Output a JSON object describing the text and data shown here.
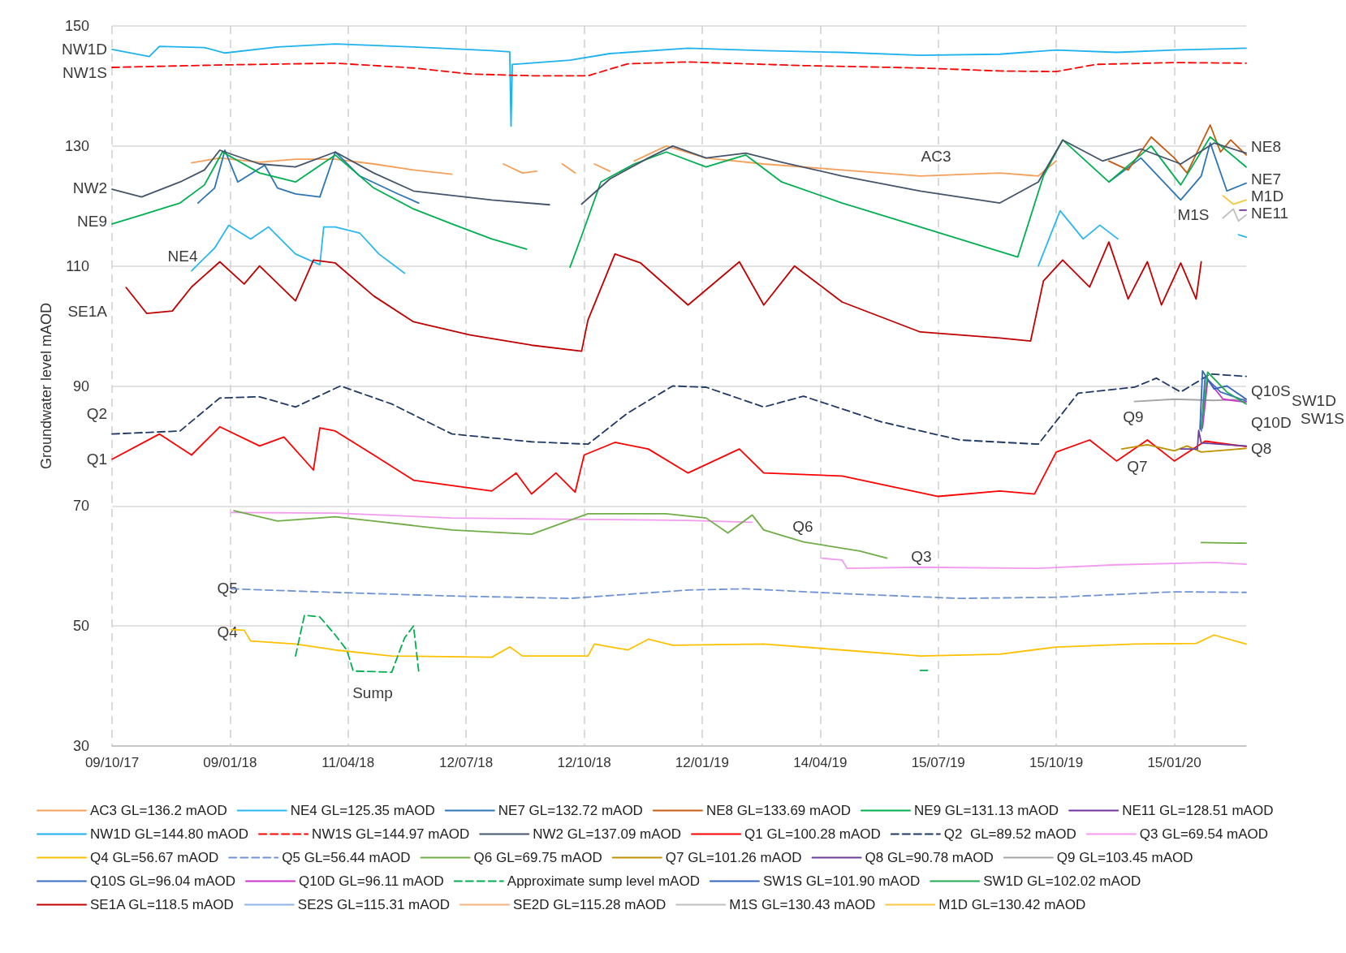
{
  "chart_data": {
    "type": "line",
    "ylabel": "Groundwater level mAOD",
    "xlim": [
      "2017-10-09",
      "2020-03-11"
    ],
    "ylim": [
      30,
      150
    ],
    "yticks": [
      30,
      50,
      70,
      90,
      110,
      130,
      150
    ],
    "xticks": [
      {
        "value": "2017-10-09",
        "label": "09/10/17"
      },
      {
        "value": "2018-01-09",
        "label": "09/01/18"
      },
      {
        "value": "2018-04-11",
        "label": "11/04/18"
      },
      {
        "value": "2018-07-12",
        "label": "12/07/18"
      },
      {
        "value": "2018-10-12",
        "label": "12/10/18"
      },
      {
        "value": "2019-01-12",
        "label": "12/01/19"
      },
      {
        "value": "2019-04-14",
        "label": "14/04/19"
      },
      {
        "value": "2019-07-15",
        "label": "15/07/19"
      },
      {
        "value": "2019-10-15",
        "label": "15/10/19"
      },
      {
        "value": "2020-01-15",
        "label": "15/01/20"
      }
    ],
    "grid": true,
    "legend": "bottom",
    "marker": "none",
    "series": [
      {
        "name": "AC3 GL=136.2 mAOD",
        "color": "#f4a05a",
        "x": [
          "2017-12-10",
          "2018-01-01",
          "2018-02-01",
          "2018-03-01",
          "2018-04-01",
          "2018-05-01",
          "2018-06-01",
          "2018-07-01",
          "2018-07-20",
          "2018-08-10",
          "2018-08-25",
          "2018-09-05",
          "2018-09-15",
          "2018-09-25",
          "2018-10-05",
          "2018-10-15",
          "2018-10-20",
          "2018-11-01",
          "2018-11-10",
          "2018-11-20",
          "2018-12-15",
          "2019-01-15",
          "2019-03-01",
          "2019-05-01",
          "2019-07-01",
          "2019-09-01",
          "2019-10-01",
          "2019-10-15"
        ],
        "values": [
          127.2,
          128.0,
          127.3,
          127.8,
          127.8,
          127.0,
          126.0,
          125.3,
          null,
          127.0,
          125.5,
          125.8,
          null,
          127.0,
          125.5,
          null,
          127.0,
          125.8,
          null,
          127.5,
          130.0,
          128.0,
          127.0,
          126.0,
          125.0,
          125.5,
          125.0,
          127.5
        ]
      },
      {
        "name": "NE4 GL=125.35 mAOD",
        "color": "#2ab7f2",
        "x": [
          "2017-12-10",
          "2017-12-28",
          "2018-01-08",
          "2018-01-25",
          "2018-02-08",
          "2018-03-01",
          "2018-03-20",
          "2018-03-23",
          "2018-04-01",
          "2018-04-20",
          "2018-05-05",
          "2018-05-25",
          "2018-06-10",
          "2019-10-01",
          "2019-10-18",
          "2019-11-05",
          "2019-11-18",
          "2019-12-02",
          "2019-12-15",
          "2020-03-05",
          "2020-03-11"
        ],
        "values": [
          109.2,
          113.0,
          116.8,
          114.5,
          116.5,
          112.0,
          110.2,
          116.5,
          116.5,
          115.5,
          112.0,
          108.8,
          null,
          110.0,
          119.2,
          114.5,
          116.8,
          114.5,
          null,
          115.2,
          114.8
        ]
      },
      {
        "name": "NE7 GL=132.72 mAOD",
        "color": "#2e75b6",
        "x": [
          "2017-12-15",
          "2017-12-28",
          "2018-01-05",
          "2018-01-15",
          "2018-02-05",
          "2018-02-15",
          "2018-03-01",
          "2018-03-20",
          "2018-04-01",
          "2018-04-20",
          "2018-05-20",
          "2018-06-05",
          "2018-06-15",
          "2019-11-25",
          "2019-12-20",
          "2020-01-20",
          "2020-02-05",
          "2020-02-12",
          "2020-02-25",
          "2020-03-11"
        ],
        "values": [
          120.5,
          123.0,
          129.3,
          124.0,
          126.8,
          123.0,
          122.0,
          121.5,
          129.0,
          125.0,
          122.0,
          120.5,
          null,
          124.0,
          128.0,
          121.0,
          125.0,
          130.5,
          122.5,
          123.8
        ]
      },
      {
        "name": "NE8 GL=133.69 mAOD",
        "color": "#c55a11",
        "x": [
          "2019-11-25",
          "2019-12-10",
          "2019-12-28",
          "2020-01-15",
          "2020-01-25",
          "2020-02-12",
          "2020-02-20",
          "2020-02-28",
          "2020-03-11"
        ],
        "values": [
          127.5,
          126.0,
          131.5,
          128.0,
          125.5,
          133.5,
          129.0,
          131.0,
          128.5
        ]
      },
      {
        "name": "NE9 GL=131.13 mAOD",
        "color": "#00b050",
        "x": [
          "2017-10-09",
          "2017-11-01",
          "2017-12-01",
          "2017-12-20",
          "2018-01-03",
          "2018-02-01",
          "2018-03-01",
          "2018-04-01",
          "2018-05-01",
          "2018-06-01",
          "2018-07-01",
          "2018-08-01",
          "2018-08-28",
          "2018-09-15",
          "2018-10-01",
          "2018-10-10",
          "2018-10-25",
          "2018-11-20",
          "2018-12-15",
          "2019-01-15",
          "2019-02-15",
          "2019-03-15",
          "2019-05-01",
          "2019-07-01",
          "2019-09-15",
          "2019-10-05",
          "2019-10-20",
          "2019-11-25",
          "2019-12-28",
          "2020-01-20",
          "2020-02-12",
          "2020-03-11"
        ],
        "values": [
          117.0,
          118.5,
          120.5,
          123.5,
          129.0,
          125.5,
          124.0,
          128.5,
          123.0,
          119.5,
          117.0,
          114.5,
          112.8,
          null,
          109.8,
          115.0,
          124.0,
          127.0,
          129.0,
          126.5,
          128.5,
          124.0,
          120.5,
          116.5,
          111.5,
          125.0,
          131.0,
          124.0,
          130.0,
          123.5,
          131.5,
          126.5
        ]
      },
      {
        "name": "NE11 GL=128.51 mAOD",
        "color": "#7030a0",
        "x": [
          "2020-03-06",
          "2020-03-11"
        ],
        "values": [
          119.3,
          119.3
        ]
      },
      {
        "name": "NW1D GL=144.80 mAOD",
        "color": "#1fb2ee",
        "x": [
          "2017-10-09",
          "2017-11-07",
          "2017-11-15",
          "2017-12-20",
          "2018-01-05",
          "2018-02-15",
          "2018-04-01",
          "2018-06-01",
          "2018-08-01",
          "2018-08-15",
          "2018-08-16",
          "2018-08-17",
          "2018-10-01",
          "2018-11-01",
          "2019-01-01",
          "2019-03-01",
          "2019-05-01",
          "2019-07-01",
          "2019-09-01",
          "2019-10-15",
          "2019-12-01",
          "2020-01-15",
          "2020-03-11"
        ],
        "values": [
          146.1,
          144.9,
          146.6,
          146.4,
          145.5,
          146.5,
          147.0,
          146.5,
          145.9,
          145.7,
          133.3,
          143.6,
          144.3,
          145.4,
          146.3,
          145.9,
          145.6,
          145.1,
          145.3,
          146.0,
          145.6,
          146.0,
          146.3
        ]
      },
      {
        "name": "NW1S GL=144.97 mAOD",
        "color": "#ff0000",
        "line_style": "dashed",
        "x": [
          "2017-10-09",
          "2018-01-01",
          "2018-04-01",
          "2018-06-01",
          "2018-07-15",
          "2018-09-01",
          "2018-10-15",
          "2018-11-15",
          "2019-01-01",
          "2019-04-01",
          "2019-07-01",
          "2019-09-01",
          "2019-10-15",
          "2019-11-15",
          "2020-01-15",
          "2020-03-11"
        ],
        "values": [
          143.1,
          143.5,
          143.8,
          143.0,
          142.0,
          141.7,
          141.7,
          143.7,
          144.0,
          143.4,
          143.0,
          142.5,
          142.4,
          143.6,
          143.9,
          143.8
        ]
      },
      {
        "name": "NW2 GL=137.09 mAOD",
        "color": "#44546a",
        "x": [
          "2017-10-09",
          "2017-11-01",
          "2017-12-01",
          "2017-12-20",
          "2018-01-01",
          "2018-02-01",
          "2018-03-01",
          "2018-04-01",
          "2018-05-01",
          "2018-06-01",
          "2018-08-01",
          "2018-09-15",
          "2018-09-25",
          "2018-10-10",
          "2018-11-01",
          "2018-12-01",
          "2018-12-20",
          "2019-01-15",
          "2019-02-15",
          "2019-03-15",
          "2019-05-01",
          "2019-07-01",
          "2019-09-01",
          "2019-10-01",
          "2019-10-20",
          "2019-11-20",
          "2019-12-20",
          "2020-01-20",
          "2020-02-15",
          "2020-03-11"
        ],
        "values": [
          122.8,
          121.5,
          124.0,
          126.0,
          129.3,
          127.0,
          126.5,
          129.0,
          125.5,
          122.5,
          121.0,
          120.2,
          null,
          120.3,
          124.5,
          128.0,
          130.0,
          128.0,
          128.8,
          127.3,
          125.0,
          122.5,
          120.5,
          124.0,
          131.0,
          127.5,
          129.5,
          127.0,
          130.5,
          128.8
        ]
      },
      {
        "name": "Q1 GL=100.28 mAOD",
        "color": "#ff0000",
        "x": [
          "2017-10-09",
          "2017-11-15",
          "2017-12-10",
          "2018-01-01",
          "2018-02-01",
          "2018-02-20",
          "2018-03-15",
          "2018-03-20",
          "2018-04-01",
          "2018-05-01",
          "2018-06-01",
          "2018-08-01",
          "2018-08-20",
          "2018-09-01",
          "2018-09-20",
          "2018-10-05",
          "2018-10-12",
          "2018-11-05",
          "2018-12-01",
          "2019-01-01",
          "2019-02-10",
          "2019-03-01",
          "2019-05-01",
          "2019-07-15",
          "2019-09-01",
          "2019-09-28",
          "2019-10-15",
          "2019-11-10",
          "2019-12-01",
          "2019-12-25",
          "2020-01-15",
          "2020-02-08",
          "2020-03-11"
        ],
        "values": [
          77.8,
          82.0,
          78.5,
          83.2,
          80.0,
          81.5,
          76.0,
          83.0,
          82.5,
          78.5,
          74.3,
          72.5,
          75.5,
          72.0,
          75.5,
          72.3,
          78.5,
          80.6,
          79.5,
          75.5,
          79.5,
          75.5,
          75.0,
          71.6,
          72.5,
          72.0,
          79.0,
          81.0,
          77.5,
          81.0,
          77.5,
          80.8,
          79.9
        ]
      },
      {
        "name": "Q2  GL=89.52 mAOD",
        "color": "#1f3864",
        "line_style": "dashed",
        "x": [
          "2017-10-09",
          "2017-12-01",
          "2018-01-01",
          "2018-02-01",
          "2018-03-01",
          "2018-04-05",
          "2018-05-15",
          "2018-07-01",
          "2018-09-01",
          "2018-10-15",
          "2018-11-15",
          "2018-12-20",
          "2019-01-15",
          "2019-03-01",
          "2019-04-01",
          "2019-06-01",
          "2019-08-01",
          "2019-10-01",
          "2019-11-01",
          "2019-12-15",
          "2020-01-01",
          "2020-01-20",
          "2020-02-12",
          "2020-03-11"
        ],
        "values": [
          82.0,
          82.5,
          88.0,
          88.2,
          86.5,
          90.0,
          87.0,
          82.0,
          80.7,
          80.3,
          85.5,
          90.0,
          89.8,
          86.5,
          88.3,
          84.0,
          81.0,
          80.3,
          88.8,
          89.8,
          91.3,
          89.0,
          92.0,
          91.6
        ]
      },
      {
        "name": "Q3 GL=69.54 mAOD",
        "color": "#f39bf0",
        "x": [
          "2018-01-10",
          "2018-04-01",
          "2018-07-01",
          "2018-10-01",
          "2019-01-01",
          "2019-02-20",
          "2019-03-20",
          "2019-04-15",
          "2019-05-01",
          "2019-05-05",
          "2019-07-01",
          "2019-10-01",
          "2019-12-01",
          "2020-02-15",
          "2020-03-11"
        ],
        "values": [
          68.9,
          68.8,
          68.0,
          67.8,
          67.6,
          67.3,
          null,
          61.3,
          61.0,
          59.6,
          59.8,
          59.6,
          60.2,
          60.6,
          60.3
        ]
      },
      {
        "name": "Q4 GL=56.67 mAOD",
        "color": "#ffc000",
        "x": [
          "2018-01-10",
          "2018-01-20",
          "2018-01-25",
          "2018-03-01",
          "2018-04-01",
          "2018-05-15",
          "2018-08-01",
          "2018-08-15",
          "2018-08-25",
          "2018-10-15",
          "2018-10-20",
          "2018-11-15",
          "2018-12-01",
          "2018-12-20",
          "2019-03-01",
          "2019-05-01",
          "2019-07-01",
          "2019-09-01",
          "2019-10-15",
          "2019-12-15",
          "2020-02-01",
          "2020-02-15",
          "2020-03-11"
        ],
        "values": [
          49.4,
          49.3,
          47.5,
          47.0,
          46.0,
          45.0,
          44.8,
          46.5,
          45.0,
          45.0,
          47.0,
          46.0,
          47.8,
          46.8,
          47.0,
          46.0,
          45.0,
          45.3,
          46.5,
          47.0,
          47.1,
          48.5,
          47.0
        ]
      },
      {
        "name": "Q5 GL=56.44 mAOD",
        "color": "#6f94d6",
        "line_style": "dashed",
        "x": [
          "2018-01-10",
          "2018-04-01",
          "2018-07-01",
          "2018-10-01",
          "2019-01-01",
          "2019-02-15",
          "2019-05-01",
          "2019-08-01",
          "2019-10-15",
          "2020-01-15",
          "2020-03-11"
        ],
        "values": [
          56.2,
          55.6,
          55.0,
          54.6,
          56.0,
          56.2,
          55.4,
          54.6,
          54.8,
          55.7,
          55.6
        ]
      },
      {
        "name": "Q6 GL=69.75 mAOD",
        "color": "#70ad47",
        "x": [
          "2018-01-12",
          "2018-02-15",
          "2018-04-01",
          "2018-05-01",
          "2018-07-01",
          "2018-09-01",
          "2018-10-15",
          "2018-12-15",
          "2019-01-15",
          "2019-02-01",
          "2019-02-20",
          "2019-03-01",
          "2019-04-01",
          "2019-05-15",
          "2019-06-05",
          "2019-07-01",
          "2020-02-05",
          "2020-03-11"
        ],
        "values": [
          69.2,
          67.5,
          68.2,
          67.5,
          66.0,
          65.3,
          68.7,
          68.7,
          68.0,
          65.5,
          68.5,
          66.0,
          64.0,
          62.5,
          61.3,
          null,
          63.9,
          63.8
        ]
      },
      {
        "name": "Q7 GL=101.26 mAOD",
        "color": "#bf9000",
        "x": [
          "2019-12-05",
          "2019-12-25",
          "2020-01-15",
          "2020-01-25",
          "2020-02-05",
          "2020-03-11"
        ],
        "values": [
          79.5,
          80.2,
          79.2,
          80.0,
          79.0,
          79.6
        ]
      },
      {
        "name": "Q8 GL=90.78 mAOD",
        "color": "#6a3fa0",
        "x": [
          "2020-01-20",
          "2020-02-02",
          "2020-02-03",
          "2020-02-05",
          "2020-03-11"
        ],
        "values": [
          79.5,
          79.5,
          82.6,
          80.5,
          80.0
        ]
      },
      {
        "name": "Q9 GL=103.45 mAOD",
        "color": "#a5a5a5",
        "x": [
          "2019-12-15",
          "2020-01-15",
          "2020-02-15",
          "2020-03-11"
        ],
        "values": [
          87.4,
          87.8,
          87.6,
          87.8
        ]
      },
      {
        "name": "Q10S GL=96.04 mAOD",
        "color": "#3a6fc4",
        "x": [
          "2020-02-05",
          "2020-02-08",
          "2020-02-20",
          "2020-03-11"
        ],
        "values": [
          82.5,
          91.5,
          89.0,
          87.5
        ]
      },
      {
        "name": "Q10D GL=96.11 mAOD",
        "color": "#cc33cc",
        "x": [
          "2020-02-06",
          "2020-02-10",
          "2020-02-22",
          "2020-03-11"
        ],
        "values": [
          83.0,
          91.0,
          87.8,
          87.3
        ]
      },
      {
        "name": "Approximate sump level mAOD",
        "color": "#00b050",
        "line_style": "dashed",
        "x": [
          "2018-03-01",
          "2018-03-08",
          "2018-03-20",
          "2018-04-01",
          "2018-04-10",
          "2018-04-15",
          "2018-05-15",
          "2018-05-25",
          "2018-06-01",
          "2018-06-05",
          "2018-07-01",
          "2019-07-01",
          "2019-07-08"
        ],
        "values": [
          45.0,
          51.8,
          51.5,
          48.5,
          46.0,
          42.5,
          42.3,
          48.0,
          50.0,
          42.5,
          null,
          42.6,
          42.6
        ]
      },
      {
        "name": "SW1S GL=101.90 mAOD",
        "color": "#3366bb",
        "x": [
          "2020-02-04",
          "2020-02-06",
          "2020-02-15",
          "2020-02-25",
          "2020-03-11"
        ],
        "values": [
          82.8,
          92.5,
          89.5,
          90.0,
          87.8
        ]
      },
      {
        "name": "SW1D GL=102.02 mAOD",
        "color": "#22aa55",
        "x": [
          "2020-02-05",
          "2020-02-10",
          "2020-02-25",
          "2020-03-11"
        ],
        "values": [
          83.0,
          92.3,
          89.0,
          87.0
        ]
      },
      {
        "name": "SE1A GL=118.5 mAOD",
        "color": "#c00000",
        "x": [
          "2017-10-20",
          "2017-11-05",
          "2017-11-25",
          "2017-12-10",
          "2018-01-01",
          "2018-01-20",
          "2018-02-01",
          "2018-03-01",
          "2018-03-15",
          "2018-04-01",
          "2018-05-01",
          "2018-06-01",
          "2018-07-15",
          "2018-09-01",
          "2018-10-10",
          "2018-10-15",
          "2018-11-05",
          "2018-11-25",
          "2019-01-01",
          "2019-02-10",
          "2019-03-01",
          "2019-03-25",
          "2019-05-01",
          "2019-07-01",
          "2019-09-01",
          "2019-09-25",
          "2019-10-05",
          "2019-10-20",
          "2019-11-10",
          "2019-11-25",
          "2019-12-10",
          "2019-12-25",
          "2020-01-05",
          "2020-01-20",
          "2020-02-01",
          "2020-02-05"
        ],
        "values": [
          106.4,
          102.1,
          102.5,
          106.5,
          110.7,
          107.0,
          110.0,
          104.2,
          111.0,
          110.5,
          105.0,
          100.7,
          98.5,
          96.8,
          95.8,
          101.0,
          112.0,
          110.5,
          103.5,
          110.7,
          103.5,
          110.0,
          104.0,
          99.0,
          98.0,
          97.5,
          107.5,
          111.0,
          106.5,
          114.0,
          104.5,
          110.7,
          103.5,
          110.5,
          104.5,
          110.7
        ]
      },
      {
        "name": "SE2S GL=115.31 mAOD",
        "color": "#8fb4e3"
      },
      {
        "name": "SE2D GL=115.28 mAOD",
        "color": "#f4b183"
      },
      {
        "name": "M1S GL=130.43 mAOD",
        "color": "#bfbfbf",
        "x": [
          "2020-02-22",
          "2020-03-01",
          "2020-03-05",
          "2020-03-11"
        ],
        "values": [
          118.0,
          119.5,
          117.5,
          118.5
        ]
      },
      {
        "name": "M1D GL=130.42 mAOD",
        "color": "#f7c843",
        "x": [
          "2020-02-22",
          "2020-03-01",
          "2020-03-11"
        ],
        "values": [
          121.7,
          120.3,
          121.0
        ]
      }
    ],
    "annotations": [
      {
        "text": "NW1D",
        "x": "2017-10-09",
        "y": 146.1
      },
      "NW1S",
      {
        "text": "NW2",
        "x": "2017-10-09",
        "y": 123.0
      },
      {
        "text": "NE9",
        "x": "2017-10-09",
        "y": 117.5
      },
      "SE1A",
      "Q2",
      {
        "text": "Q1",
        "x": "2017-10-09",
        "y": 77.8
      },
      "NE4",
      "AC3",
      "NE8",
      {
        "text": "NE7",
        "x": "2020-03-11",
        "y": 124.5
      },
      {
        "text": "M1D",
        "x": "2020-03-11",
        "y": 121.7
      },
      "M1S",
      {
        "text": "NE11",
        "x": "2020-03-11",
        "y": 118.8
      },
      "Q10S",
      {
        "text": "SW1D",
        "x": "2020-03-11",
        "y": 87.6
      },
      "Q10D",
      "SW1S",
      {
        "text": "Q8",
        "x": "2020-03-11",
        "y": 79.6
      },
      "Q9",
      "Q7",
      "Q6",
      "Q3",
      {
        "text": "Q5",
        "x": "2018-01-07",
        "y": 56.3
      },
      {
        "text": "Q4",
        "x": "2018-01-07",
        "y": 49.0
      },
      "Sump"
    ]
  }
}
